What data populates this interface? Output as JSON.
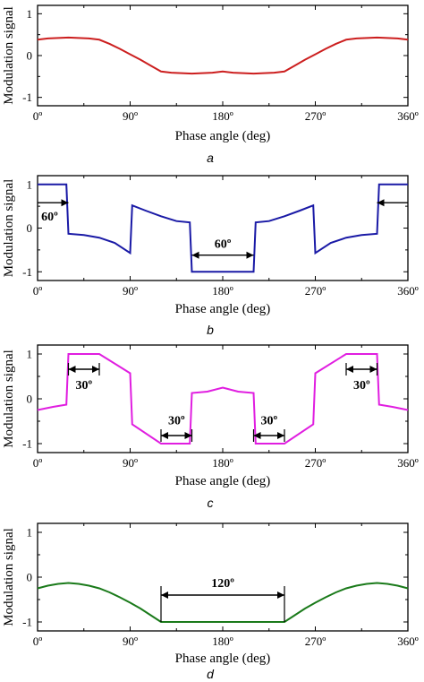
{
  "chart_data": [
    {
      "type": "line",
      "panel_label": "a",
      "xlabel": "Phase angle (deg)",
      "ylabel": "Modulation signal",
      "xlim": [
        0,
        360
      ],
      "ylim": [
        -1.2,
        1.2
      ],
      "xticks": [
        0,
        90,
        180,
        270,
        360
      ],
      "xtick_labels": [
        "0º",
        "90º",
        "180º",
        "270º",
        "360º"
      ],
      "yticks": [
        -1,
        0,
        1
      ],
      "ytick_labels": [
        "-1",
        "0",
        "1"
      ],
      "color": "#cc1f1f",
      "series": [
        {
          "x": [
            0,
            10,
            20,
            30,
            40,
            50,
            60,
            70,
            80,
            90,
            100,
            110,
            120,
            130,
            140,
            150,
            160,
            170,
            180,
            190,
            200,
            210,
            220,
            230,
            240,
            250,
            260,
            270,
            280,
            290,
            300,
            310,
            320,
            330,
            340,
            350,
            360
          ],
          "values": [
            0.38,
            0.41,
            0.42,
            0.43,
            0.42,
            0.41,
            0.38,
            0.28,
            0.16,
            0.03,
            -0.1,
            -0.24,
            -0.38,
            -0.41,
            -0.42,
            -0.43,
            -0.42,
            -0.41,
            -0.38,
            -0.41,
            -0.42,
            -0.43,
            -0.42,
            -0.41,
            -0.38,
            -0.24,
            -0.1,
            0.03,
            0.16,
            0.28,
            0.38,
            0.41,
            0.42,
            0.43,
            0.42,
            0.41,
            0.38
          ]
        }
      ],
      "annotations": []
    },
    {
      "type": "line",
      "panel_label": "b",
      "xlabel": "Phase angle (deg)",
      "ylabel": "Modulation signal",
      "xlim": [
        0,
        360
      ],
      "ylim": [
        -1.2,
        1.2
      ],
      "xticks": [
        0,
        90,
        180,
        270,
        360
      ],
      "xtick_labels": [
        "0º",
        "90º",
        "180º",
        "270º",
        "360º"
      ],
      "yticks": [
        -1,
        0,
        1
      ],
      "ytick_labels": [
        "-1",
        "0",
        "1"
      ],
      "color": "#1a1aa6",
      "series": [
        {
          "x": [
            0,
            28,
            30,
            45,
            60,
            75,
            90,
            92,
            105,
            120,
            135,
            148,
            150,
            180,
            210,
            212,
            225,
            240,
            255,
            268,
            270,
            285,
            300,
            315,
            330,
            332,
            360
          ],
          "values": [
            1,
            1,
            -0.13,
            -0.16,
            -0.22,
            -0.34,
            -0.57,
            0.52,
            0.4,
            0.27,
            0.16,
            0.13,
            -1,
            -1,
            -1,
            0.13,
            0.16,
            0.27,
            0.4,
            0.52,
            -0.57,
            -0.34,
            -0.22,
            -0.16,
            -0.13,
            1,
            1
          ]
        }
      ],
      "annotations": [
        {
          "text": "60º",
          "x1": 0,
          "x2": 30,
          "y": 0.58,
          "text_x": 1,
          "text_y": 0.28,
          "align": "start"
        },
        {
          "text": "60º",
          "x1": 150,
          "x2": 210,
          "y": -0.62,
          "text_x": 180,
          "text_y": -0.35,
          "align": "middle"
        },
        {
          "text": "",
          "x1": 330,
          "x2": 360,
          "y": 0.58
        }
      ]
    },
    {
      "type": "line",
      "panel_label": "c",
      "xlabel": "Phase angle (deg)",
      "ylabel": "Modulation signal",
      "xlim": [
        0,
        360
      ],
      "ylim": [
        -1.2,
        1.2
      ],
      "xticks": [
        0,
        90,
        180,
        270,
        360
      ],
      "xtick_labels": [
        "0º",
        "90º",
        "180º",
        "270º",
        "360º"
      ],
      "yticks": [
        -1,
        0,
        1
      ],
      "ytick_labels": [
        "-1",
        "0",
        "1"
      ],
      "color": "#e01ee0",
      "series": [
        {
          "x": [
            0,
            15,
            28,
            30,
            60,
            90,
            92,
            120,
            148,
            150,
            165,
            180,
            195,
            210,
            212,
            240,
            268,
            270,
            300,
            330,
            332,
            345,
            360
          ],
          "values": [
            -0.25,
            -0.18,
            -0.13,
            1,
            1,
            0.57,
            -0.57,
            -1,
            -1,
            0.13,
            0.16,
            0.25,
            0.16,
            0.13,
            -1,
            -1,
            -0.57,
            0.57,
            1,
            1,
            -0.13,
            -0.18,
            -0.25
          ]
        }
      ],
      "annotations": [
        {
          "text": "30º",
          "x1": 30,
          "x2": 60,
          "y": 0.66,
          "text_x": 45,
          "text_y": 0.32,
          "align": "middle"
        },
        {
          "text": "30º",
          "x1": 120,
          "x2": 150,
          "y": -0.82,
          "text_x": 135,
          "text_y": -0.47,
          "align": "middle"
        },
        {
          "text": "30º",
          "x1": 210,
          "x2": 240,
          "y": -0.82,
          "text_x": 225,
          "text_y": -0.47,
          "align": "middle"
        },
        {
          "text": "30º",
          "x1": 300,
          "x2": 330,
          "y": 0.66,
          "text_x": 315,
          "text_y": 0.32,
          "align": "middle"
        }
      ]
    },
    {
      "type": "line",
      "panel_label": "d",
      "xlabel": "Phase angle (deg)",
      "ylabel": "Modulation signal",
      "xlim": [
        0,
        360
      ],
      "ylim": [
        -1.2,
        1.2
      ],
      "xticks": [
        0,
        90,
        180,
        270,
        360
      ],
      "xtick_labels": [
        "0º",
        "90º",
        "180º",
        "270º",
        "360º"
      ],
      "yticks": [
        -1,
        0,
        1
      ],
      "ytick_labels": [
        "-1",
        "0",
        "1"
      ],
      "color": "#1a7a1a",
      "series": [
        {
          "x": [
            0,
            10,
            20,
            30,
            40,
            50,
            60,
            70,
            80,
            90,
            100,
            110,
            120,
            150,
            180,
            210,
            240,
            250,
            260,
            270,
            280,
            290,
            300,
            310,
            320,
            330,
            340,
            350,
            360
          ],
          "values": [
            -0.25,
            -0.19,
            -0.15,
            -0.13,
            -0.15,
            -0.19,
            -0.25,
            -0.34,
            -0.45,
            -0.57,
            -0.7,
            -0.85,
            -1,
            -1,
            -1,
            -1,
            -1,
            -0.85,
            -0.7,
            -0.57,
            -0.45,
            -0.34,
            -0.25,
            -0.19,
            -0.15,
            -0.13,
            -0.15,
            -0.19,
            -0.25
          ]
        }
      ],
      "annotations": [
        {
          "text": "120º",
          "x1": 120,
          "x2": 240,
          "y": -0.4,
          "text_x": 180,
          "text_y": -0.12,
          "align": "middle",
          "vlines": [
            120,
            240
          ],
          "vline_bottom": -1,
          "vline_top": -0.2
        }
      ]
    }
  ]
}
